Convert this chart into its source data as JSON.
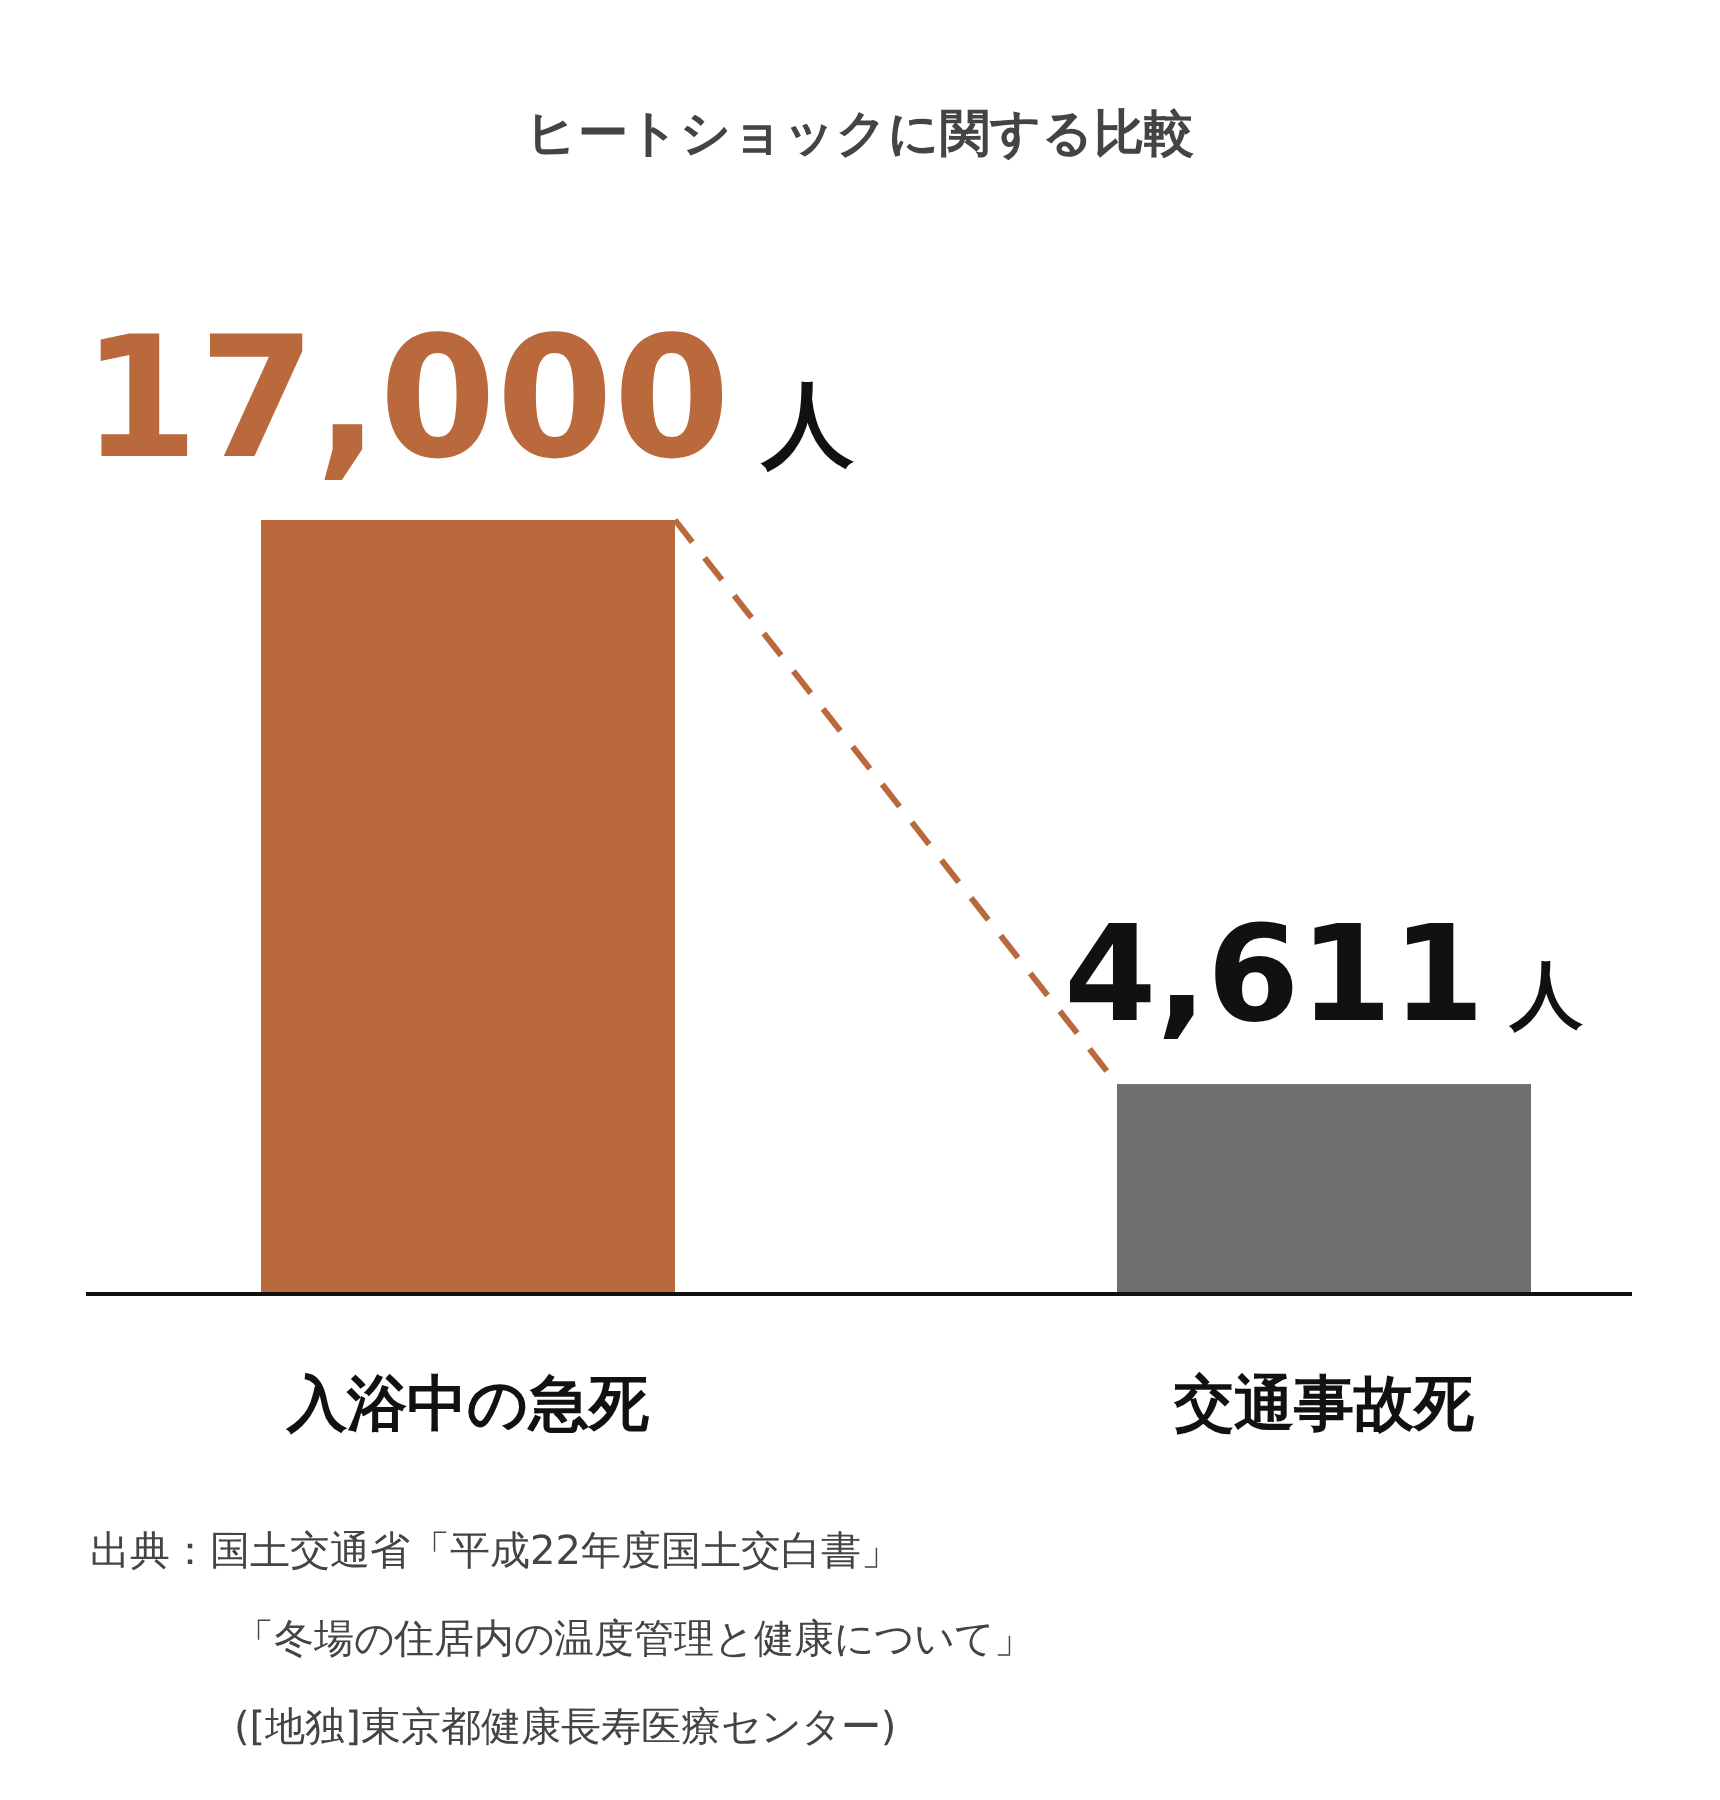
{
  "chart_data": {
    "type": "bar",
    "title": "ヒートショックに関する比較",
    "categories": [
      "入浴中の急死",
      "交通事故死"
    ],
    "values": [
      17000,
      4611
    ],
    "colors": [
      "#b9693b",
      "#6f6f6f"
    ],
    "value_labels": [
      "17,000 人",
      "4,611 人"
    ],
    "annotations": [
      "出典：国土交通省「平成22年度国土交白書」",
      "「冬場の住居内の温度管理と健康について」",
      "([地独]東京都健康長寿医療センター)"
    ]
  }
}
